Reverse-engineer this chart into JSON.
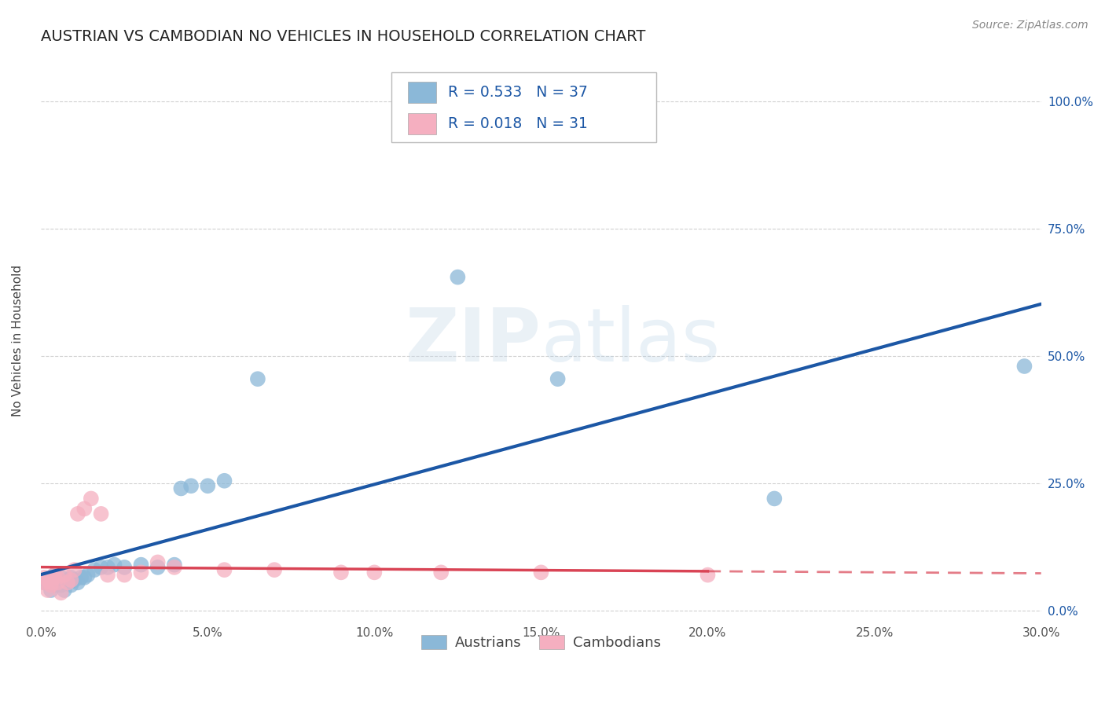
{
  "title": "AUSTRIAN VS CAMBODIAN NO VEHICLES IN HOUSEHOLD CORRELATION CHART",
  "source": "Source: ZipAtlas.com",
  "ylabel": "No Vehicles in Household",
  "xlim": [
    0.0,
    0.3
  ],
  "ylim": [
    -0.02,
    1.08
  ],
  "x_ticks": [
    0.0,
    0.05,
    0.1,
    0.15,
    0.2,
    0.25,
    0.3
  ],
  "x_tick_labels": [
    "0.0%",
    "5.0%",
    "10.0%",
    "15.0%",
    "20.0%",
    "25.0%",
    "30.0%"
  ],
  "y_ticks": [
    0.0,
    0.25,
    0.5,
    0.75,
    1.0
  ],
  "y_tick_labels": [
    "0.0%",
    "25.0%",
    "50.0%",
    "75.0%",
    "100.0%"
  ],
  "austrian_x": [
    0.001,
    0.002,
    0.003,
    0.003,
    0.004,
    0.004,
    0.005,
    0.005,
    0.006,
    0.006,
    0.007,
    0.007,
    0.008,
    0.009,
    0.009,
    0.01,
    0.011,
    0.012,
    0.013,
    0.014,
    0.016,
    0.018,
    0.02,
    0.022,
    0.025,
    0.03,
    0.035,
    0.04,
    0.042,
    0.045,
    0.05,
    0.055,
    0.065,
    0.125,
    0.155,
    0.22,
    0.295
  ],
  "austrian_y": [
    0.055,
    0.06,
    0.04,
    0.065,
    0.05,
    0.07,
    0.055,
    0.06,
    0.05,
    0.065,
    0.04,
    0.055,
    0.06,
    0.05,
    0.065,
    0.06,
    0.055,
    0.065,
    0.065,
    0.07,
    0.08,
    0.085,
    0.085,
    0.09,
    0.085,
    0.09,
    0.085,
    0.09,
    0.24,
    0.245,
    0.245,
    0.255,
    0.455,
    0.655,
    0.455,
    0.22,
    0.48
  ],
  "cambodian_x": [
    0.001,
    0.001,
    0.002,
    0.002,
    0.003,
    0.003,
    0.004,
    0.004,
    0.005,
    0.005,
    0.006,
    0.007,
    0.008,
    0.009,
    0.01,
    0.011,
    0.013,
    0.015,
    0.018,
    0.02,
    0.025,
    0.03,
    0.035,
    0.04,
    0.055,
    0.07,
    0.09,
    0.1,
    0.12,
    0.15,
    0.2
  ],
  "cambodian_y": [
    0.055,
    0.065,
    0.04,
    0.06,
    0.05,
    0.055,
    0.065,
    0.07,
    0.055,
    0.065,
    0.035,
    0.07,
    0.055,
    0.06,
    0.08,
    0.19,
    0.2,
    0.22,
    0.19,
    0.07,
    0.07,
    0.075,
    0.095,
    0.085,
    0.08,
    0.08,
    0.075,
    0.075,
    0.075,
    0.075,
    0.07
  ],
  "austrian_color": "#8bb8d8",
  "cambodian_color": "#f5afc0",
  "austrian_line_color": "#1c57a5",
  "cambodian_line_color": "#d94455",
  "grid_color": "#d0d0d0",
  "background_color": "#ffffff",
  "title_fontsize": 14,
  "axis_label_fontsize": 11,
  "tick_fontsize": 11,
  "source_fontsize": 10,
  "legend_box_color": "#aaaaaa",
  "watermark_color": "#c5d8e8",
  "watermark_alpha": 0.35
}
